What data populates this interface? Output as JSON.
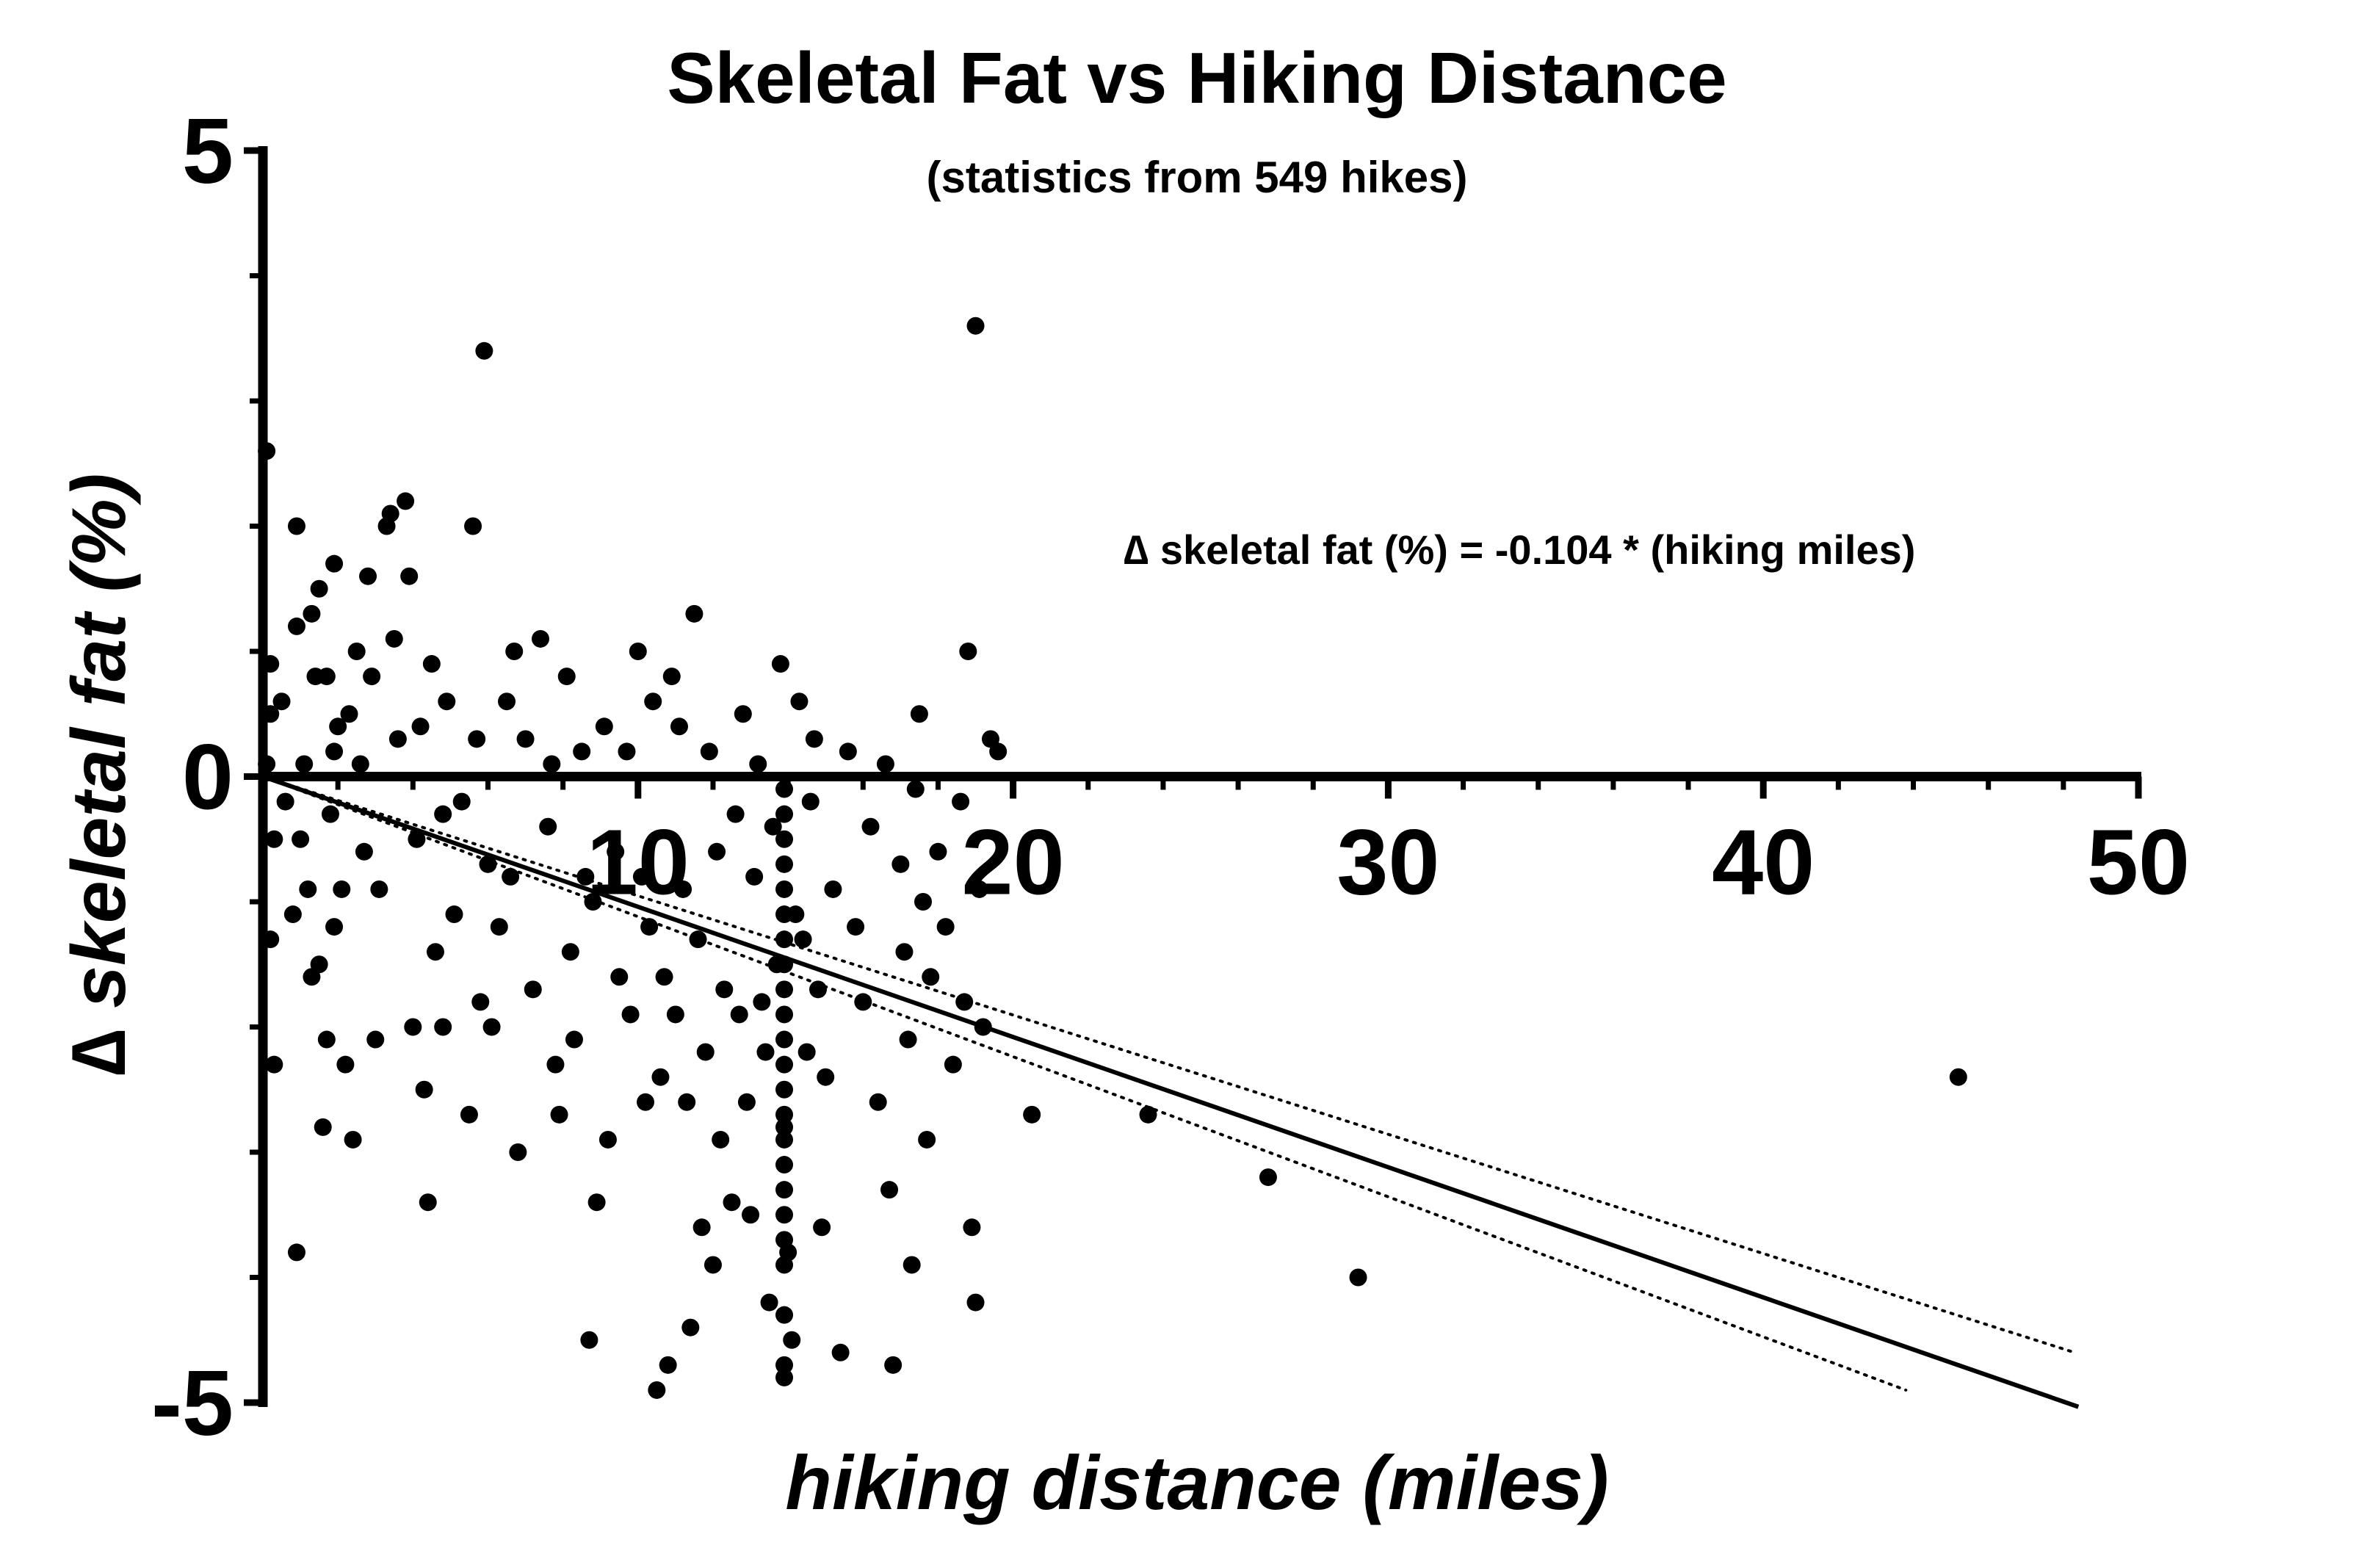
{
  "chart_data": {
    "type": "scatter",
    "title": "Skeletal Fat vs Hiking Distance",
    "subtitle": "(statistics from 549 hikes)",
    "xlabel": "hiking distance (miles)",
    "ylabel": "∆ skeletal fat (%)",
    "annotation": "∆ skeletal fat (%) = -0.104 * (hiking miles)",
    "xlim": [
      0,
      50
    ],
    "ylim": [
      -5,
      5
    ],
    "x_ticks": [
      10,
      20,
      30,
      40,
      50
    ],
    "y_ticks": [
      -5,
      0,
      5
    ],
    "x_tick_labels": [
      "10",
      "20",
      "30",
      "40",
      "50"
    ],
    "y_tick_labels": [
      "-5",
      "0",
      "5"
    ],
    "x_minor_step": 2,
    "y_minor_step": 1,
    "grid": false,
    "legend": "none",
    "marker_color": "#000000",
    "fit": {
      "name": "regression",
      "slope": -0.104,
      "intercept": 0,
      "x_range": [
        0,
        48.4
      ],
      "style": "solid"
    },
    "confidence_band": {
      "style": "dotted",
      "upper": [
        [
          0,
          0
        ],
        [
          48.3,
          -4.6
        ]
      ],
      "lower": [
        [
          0,
          0
        ],
        [
          43.8,
          -4.9
        ]
      ]
    },
    "points": [
      [
        0.1,
        2.6
      ],
      [
        0.2,
        0.9
      ],
      [
        0.2,
        0.5
      ],
      [
        0.1,
        0.1
      ],
      [
        0.3,
        -0.5
      ],
      [
        0.2,
        -1.3
      ],
      [
        0.3,
        -2.3
      ],
      [
        0.5,
        0.6
      ],
      [
        0.6,
        -0.2
      ],
      [
        0.8,
        -1.1
      ],
      [
        0.9,
        -3.8
      ],
      [
        0.9,
        2.0
      ],
      [
        0.9,
        1.2
      ],
      [
        1.0,
        -0.5
      ],
      [
        1.1,
        0.1
      ],
      [
        1.2,
        -0.9
      ],
      [
        1.3,
        -1.6
      ],
      [
        1.3,
        1.3
      ],
      [
        1.4,
        0.8
      ],
      [
        1.5,
        1.5
      ],
      [
        1.5,
        -1.5
      ],
      [
        1.6,
        -2.8
      ],
      [
        1.7,
        -2.1
      ],
      [
        1.7,
        0.8
      ],
      [
        1.8,
        -0.3
      ],
      [
        1.9,
        1.7
      ],
      [
        1.9,
        0.2
      ],
      [
        1.9,
        -1.2
      ],
      [
        2.0,
        0.4
      ],
      [
        2.1,
        -0.9
      ],
      [
        2.2,
        -2.3
      ],
      [
        2.3,
        0.5
      ],
      [
        2.4,
        -2.9
      ],
      [
        2.5,
        1.0
      ],
      [
        2.6,
        0.1
      ],
      [
        2.7,
        -0.6
      ],
      [
        2.8,
        1.6
      ],
      [
        2.9,
        0.8
      ],
      [
        3.0,
        -2.1
      ],
      [
        3.1,
        -0.9
      ],
      [
        3.3,
        2.0
      ],
      [
        3.4,
        2.1
      ],
      [
        3.5,
        1.1
      ],
      [
        3.6,
        0.3
      ],
      [
        3.8,
        2.2
      ],
      [
        3.9,
        1.6
      ],
      [
        4.0,
        -2.0
      ],
      [
        4.1,
        -0.5
      ],
      [
        4.2,
        0.4
      ],
      [
        4.3,
        -2.5
      ],
      [
        4.4,
        -3.4
      ],
      [
        4.5,
        0.9
      ],
      [
        4.6,
        -1.4
      ],
      [
        4.8,
        -2.0
      ],
      [
        4.8,
        -0.3
      ],
      [
        4.9,
        0.6
      ],
      [
        5.1,
        -1.1
      ],
      [
        5.3,
        -0.2
      ],
      [
        5.5,
        -2.7
      ],
      [
        5.6,
        2.0
      ],
      [
        5.7,
        0.3
      ],
      [
        5.8,
        -1.8
      ],
      [
        5.9,
        3.4
      ],
      [
        6.0,
        -0.7
      ],
      [
        6.1,
        -2.0
      ],
      [
        6.3,
        -1.2
      ],
      [
        6.5,
        0.6
      ],
      [
        6.6,
        -0.8
      ],
      [
        6.7,
        1.0
      ],
      [
        6.8,
        -3.0
      ],
      [
        7.0,
        0.3
      ],
      [
        7.2,
        -1.7
      ],
      [
        7.4,
        1.1
      ],
      [
        7.6,
        -0.4
      ],
      [
        7.7,
        0.1
      ],
      [
        7.8,
        -2.3
      ],
      [
        7.9,
        -2.7
      ],
      [
        8.1,
        0.8
      ],
      [
        8.2,
        -1.4
      ],
      [
        8.3,
        -2.1
      ],
      [
        8.5,
        0.2
      ],
      [
        8.6,
        -0.8
      ],
      [
        8.7,
        -4.5
      ],
      [
        8.8,
        -1.0
      ],
      [
        8.9,
        -3.4
      ],
      [
        9.1,
        0.4
      ],
      [
        9.2,
        -2.9
      ],
      [
        9.4,
        -0.6
      ],
      [
        9.5,
        -1.6
      ],
      [
        9.7,
        0.2
      ],
      [
        9.8,
        -1.9
      ],
      [
        10.0,
        1.0
      ],
      [
        10.1,
        -0.8
      ],
      [
        10.2,
        -2.6
      ],
      [
        10.3,
        -1.2
      ],
      [
        10.4,
        0.6
      ],
      [
        10.5,
        -4.9
      ],
      [
        10.6,
        -2.4
      ],
      [
        10.7,
        -1.6
      ],
      [
        10.8,
        -4.7
      ],
      [
        10.9,
        0.8
      ],
      [
        11.0,
        -1.9
      ],
      [
        11.1,
        0.4
      ],
      [
        11.2,
        -0.9
      ],
      [
        11.3,
        -2.6
      ],
      [
        11.4,
        -4.4
      ],
      [
        11.5,
        1.3
      ],
      [
        11.6,
        -1.3
      ],
      [
        11.7,
        -3.6
      ],
      [
        11.8,
        -2.2
      ],
      [
        11.9,
        0.2
      ],
      [
        12.0,
        -3.9
      ],
      [
        12.1,
        -0.6
      ],
      [
        12.2,
        -2.9
      ],
      [
        12.3,
        -1.7
      ],
      [
        12.5,
        -3.4
      ],
      [
        12.6,
        -0.3
      ],
      [
        12.7,
        -1.9
      ],
      [
        12.8,
        0.5
      ],
      [
        12.9,
        -2.6
      ],
      [
        13.0,
        -3.5
      ],
      [
        13.1,
        -0.8
      ],
      [
        13.2,
        0.1
      ],
      [
        13.3,
        -1.8
      ],
      [
        13.4,
        -2.2
      ],
      [
        13.5,
        -4.2
      ],
      [
        13.6,
        -0.4
      ],
      [
        13.7,
        -1.5
      ],
      [
        13.8,
        0.9
      ],
      [
        13.9,
        -2.8
      ],
      [
        14.0,
        -3.8
      ],
      [
        14.1,
        -4.5
      ],
      [
        14.2,
        -1.1
      ],
      [
        14.3,
        0.6
      ],
      [
        14.4,
        -1.3
      ],
      [
        14.5,
        -2.2
      ],
      [
        14.6,
        -0.2
      ],
      [
        14.7,
        0.3
      ],
      [
        14.8,
        -1.7
      ],
      [
        14.9,
        -3.6
      ],
      [
        15.0,
        -2.4
      ],
      [
        15.2,
        -0.9
      ],
      [
        15.4,
        -4.6
      ],
      [
        15.6,
        0.2
      ],
      [
        15.8,
        -1.2
      ],
      [
        16.0,
        -1.8
      ],
      [
        16.2,
        -0.4
      ],
      [
        16.4,
        -2.6
      ],
      [
        16.6,
        0.1
      ],
      [
        16.7,
        -3.3
      ],
      [
        16.8,
        -4.7
      ],
      [
        17.0,
        -0.7
      ],
      [
        17.1,
        -1.4
      ],
      [
        17.2,
        -2.1
      ],
      [
        17.3,
        -3.9
      ],
      [
        17.4,
        -0.1
      ],
      [
        17.5,
        0.5
      ],
      [
        17.6,
        -1.0
      ],
      [
        17.7,
        -2.9
      ],
      [
        17.8,
        -1.6
      ],
      [
        18.0,
        -0.6
      ],
      [
        18.2,
        -1.2
      ],
      [
        18.4,
        -2.3
      ],
      [
        18.6,
        -0.2
      ],
      [
        18.7,
        -1.8
      ],
      [
        18.8,
        1.0
      ],
      [
        18.9,
        -3.6
      ],
      [
        19.0,
        -4.2
      ],
      [
        19.0,
        3.6
      ],
      [
        19.1,
        -0.9
      ],
      [
        19.2,
        -2.0
      ],
      [
        19.4,
        0.3
      ],
      [
        19.6,
        0.2
      ],
      [
        20.5,
        -2.7
      ],
      [
        23.6,
        -2.7
      ],
      [
        26.8,
        -3.2
      ],
      [
        29.2,
        -4.0
      ],
      [
        45.2,
        -2.4
      ],
      [
        13.9,
        -0.1
      ],
      [
        13.9,
        -0.3
      ],
      [
        13.9,
        -0.5
      ],
      [
        13.9,
        -0.7
      ],
      [
        13.9,
        -0.9
      ],
      [
        13.9,
        -1.1
      ],
      [
        13.9,
        -1.3
      ],
      [
        13.9,
        -1.5
      ],
      [
        13.9,
        -1.7
      ],
      [
        13.9,
        -1.9
      ],
      [
        13.9,
        -2.1
      ],
      [
        13.9,
        -2.3
      ],
      [
        13.9,
        -2.5
      ],
      [
        13.9,
        -2.7
      ],
      [
        13.9,
        -2.9
      ],
      [
        13.9,
        -3.1
      ],
      [
        13.9,
        -3.3
      ],
      [
        13.9,
        -3.5
      ],
      [
        13.9,
        -3.7
      ],
      [
        13.9,
        -3.9
      ],
      [
        13.9,
        -4.3
      ],
      [
        13.9,
        -4.7
      ],
      [
        13.9,
        -4.8
      ]
    ]
  }
}
